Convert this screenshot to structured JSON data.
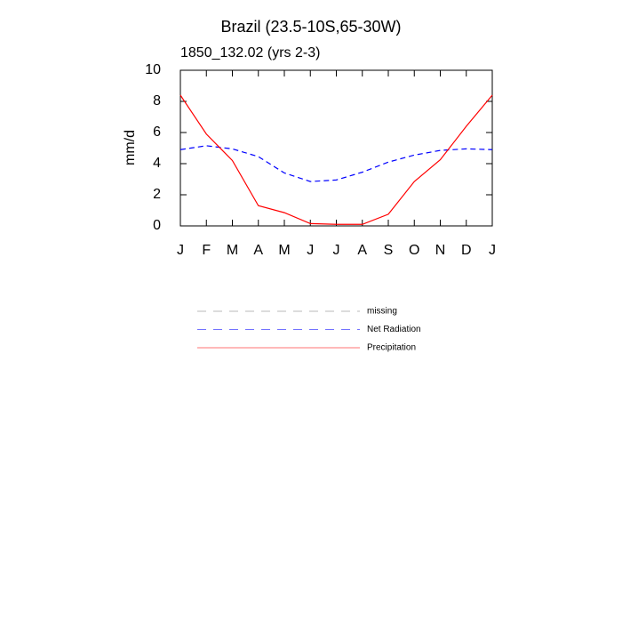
{
  "chart_data": {
    "type": "line",
    "title": "Brazil (23.5-10S,65-30W)",
    "subtitle": "1850_132.02 (yrs 2-3)",
    "y_label": "mm/d",
    "categories": [
      "J",
      "F",
      "M",
      "A",
      "M",
      "J",
      "J",
      "A",
      "S",
      "O",
      "N",
      "D",
      "J"
    ],
    "series": [
      {
        "name": "missing",
        "color": "#808080",
        "dash": true,
        "values": [
          null,
          null,
          null,
          null,
          null,
          null,
          null,
          null,
          null,
          null,
          null,
          null,
          null
        ]
      },
      {
        "name": "Net Radiation",
        "color": "#0000ff",
        "dash": true,
        "values": [
          4.9,
          5.15,
          4.95,
          4.45,
          3.4,
          2.85,
          2.95,
          3.45,
          4.1,
          4.55,
          4.85,
          4.95,
          4.9
        ]
      },
      {
        "name": "Precipitation",
        "color": "#ff0000",
        "dash": false,
        "values": [
          8.4,
          5.9,
          4.2,
          1.3,
          0.85,
          0.15,
          0.1,
          0.1,
          0.75,
          2.85,
          4.25,
          6.4,
          8.4
        ]
      }
    ],
    "ylim": [
      0,
      10
    ],
    "yticks": [
      0,
      2,
      4,
      6,
      8,
      10
    ],
    "grid": false
  }
}
